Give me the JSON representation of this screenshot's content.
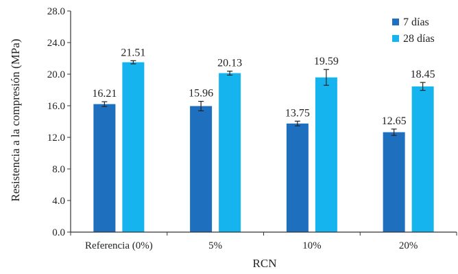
{
  "chart_data": {
    "type": "bar",
    "title": "",
    "xlabel": "RCN",
    "ylabel": "Resistencia a la compresión (MPa)",
    "ylim": [
      0,
      28
    ],
    "yticks": [
      "0.0",
      "4.0",
      "8.0",
      "12.0",
      "16.0",
      "20.0",
      "24.0",
      "28.0"
    ],
    "grid": false,
    "legend_position": "top-right",
    "categories": [
      "Referencia (0%)",
      "5%",
      "10%",
      "20%"
    ],
    "series": [
      {
        "name": "7 días",
        "color": "#1f6fbf",
        "values": [
          16.21,
          15.96,
          13.75,
          12.65
        ],
        "labels": [
          "16.21",
          "15.96",
          "13.75",
          "12.65"
        ],
        "errors": [
          0.3,
          0.6,
          0.3,
          0.4
        ]
      },
      {
        "name": "28 días",
        "color": "#16b4ee",
        "values": [
          21.51,
          20.13,
          19.59,
          18.45
        ],
        "labels": [
          "21.51",
          "20.13",
          "19.59",
          "18.45"
        ],
        "errors": [
          0.2,
          0.25,
          1.0,
          0.5
        ]
      }
    ]
  }
}
